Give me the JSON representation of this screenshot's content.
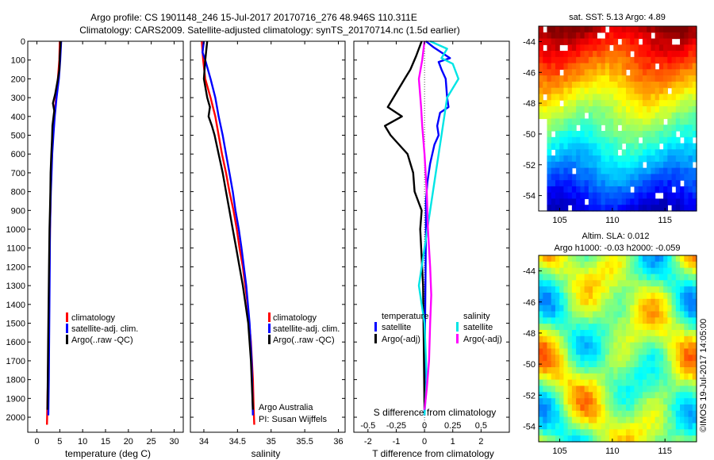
{
  "header": {
    "title_line1": "Argo profile: CS 1901148_246 15-Jul-2017 20170716_276 48.946S 110.311E",
    "title_line2": "Climatology: CARS2009. Satellite-adjusted climatology: synTS_20170714.nc (1.5d earlier)"
  },
  "colors": {
    "climatology": "#ff0000",
    "satellite": "#0000ff",
    "argo": "#000000",
    "salinity_satellite": "#00e5e5",
    "salinity_argo": "#ff00ff"
  },
  "panels": {
    "temperature": {
      "xlabel": "temperature (deg C)",
      "legend": [
        "climatology",
        "satellite-adj. clim.",
        "Argo(..raw -QC)"
      ]
    },
    "salinity": {
      "xlabel": "salinity",
      "legend": [
        "climatology",
        "satellite-adj. clim.",
        "Argo(..raw -QC)"
      ],
      "note1": "Argo Australia",
      "note2": "PI: Susan Wijffels"
    },
    "difference": {
      "xlabel": "T difference from climatology",
      "top_axis_label": "S difference from climatology",
      "legend_temperature_title": "temperature",
      "legend_salinity_title": "salinity",
      "legend_temperature": [
        "satellite",
        "Argo(-adj)"
      ],
      "legend_salinity": [
        "satellite",
        "Argo(-adj)"
      ]
    },
    "sst_map": {
      "title": "sat. SST: 5.13  Argo: 4.89",
      "colormap": [
        "#00008b",
        "#0000ff",
        "#0080ff",
        "#00ffff",
        "#00ff80",
        "#80ff00",
        "#ffff00",
        "#ff8000",
        "#ff0000",
        "#8b0000"
      ]
    },
    "sla_map": {
      "title_line1": "Altim. SLA: 0.012",
      "title_line2": "Argo h1000: -0.03 h2000: -0.059",
      "colormap": [
        "#0000ff",
        "#00ffff",
        "#80ff00",
        "#ffff00",
        "#ff8000"
      ]
    }
  },
  "side_text": "©IMOS 19-Jul-2017 14:05:00",
  "chart_data": [
    {
      "type": "line",
      "name": "temperature profile",
      "xlabel": "temperature (deg C)",
      "ylabel": "",
      "xlim": [
        -2,
        32
      ],
      "ylim": [
        2080,
        0
      ],
      "xticks": [
        0,
        5,
        10,
        15,
        20,
        25,
        30
      ],
      "yticks": [
        0,
        100,
        200,
        300,
        400,
        500,
        600,
        700,
        800,
        900,
        1000,
        1100,
        1200,
        1300,
        1400,
        1500,
        1600,
        1700,
        1800,
        1900,
        2000
      ],
      "series": [
        {
          "name": "climatology",
          "x": [
            5.0,
            4.9,
            4.6,
            4.2,
            3.8,
            3.5,
            3.3,
            3.15,
            3.0,
            2.95,
            2.85,
            2.75,
            2.6,
            2.4,
            2.2
          ],
          "y": [
            0,
            100,
            200,
            300,
            400,
            500,
            600,
            700,
            800,
            900,
            1000,
            1200,
            1500,
            1800,
            2040
          ]
        },
        {
          "name": "satellite-adj. clim.",
          "x": [
            5.3,
            5.1,
            4.8,
            4.3,
            3.9,
            3.6,
            3.35,
            3.2,
            3.05,
            2.95,
            2.85,
            2.8,
            2.7,
            2.6,
            2.5
          ],
          "y": [
            0,
            100,
            200,
            300,
            400,
            500,
            600,
            700,
            800,
            900,
            1000,
            1200,
            1500,
            1800,
            1990
          ]
        },
        {
          "name": "Argo(..raw -QC)",
          "x": [
            5.2,
            5.0,
            4.9,
            4.6,
            4.0,
            3.5,
            3.8,
            3.4,
            3.3,
            3.15,
            3.0,
            2.95,
            2.85,
            2.75,
            2.65,
            2.45,
            2.3
          ],
          "y": [
            0,
            80,
            150,
            200,
            280,
            330,
            370,
            450,
            520,
            600,
            700,
            800,
            900,
            1000,
            1200,
            1600,
            1960
          ]
        }
      ]
    },
    {
      "type": "line",
      "name": "salinity profile",
      "xlabel": "salinity",
      "ylabel": "",
      "xlim": [
        33.8,
        36.1
      ],
      "ylim": [
        2080,
        0
      ],
      "xticks": [
        34,
        34.5,
        35,
        35.5,
        36
      ],
      "yticks": [
        0,
        100,
        200,
        300,
        400,
        500,
        600,
        700,
        800,
        900,
        1000,
        1100,
        1200,
        1300,
        1400,
        1500,
        1600,
        1700,
        1800,
        1900,
        2000
      ],
      "series": [
        {
          "name": "climatology",
          "x": [
            33.97,
            33.99,
            34.02,
            34.1,
            34.17,
            34.22,
            34.27,
            34.33,
            34.38,
            34.44,
            34.49,
            34.53,
            34.58,
            34.65,
            34.7,
            34.73,
            34.74,
            34.75
          ],
          "y": [
            0,
            100,
            200,
            300,
            400,
            500,
            600,
            700,
            800,
            900,
            1000,
            1100,
            1200,
            1400,
            1600,
            1800,
            1950,
            2040
          ]
        },
        {
          "name": "satellite-adj. clim.",
          "x": [
            34.0,
            33.98,
            34.02,
            34.1,
            34.17,
            34.22,
            34.28,
            34.33,
            34.38,
            34.43,
            34.47,
            34.52,
            34.56,
            34.63,
            34.68,
            34.71,
            34.72,
            34.73
          ],
          "y": [
            0,
            60,
            100,
            200,
            300,
            400,
            500,
            600,
            700,
            800,
            900,
            1000,
            1100,
            1300,
            1500,
            1700,
            1850,
            1990
          ]
        },
        {
          "name": "Argo(..raw -QC)",
          "x": [
            34.05,
            34.02,
            34.0,
            34.05,
            34.09,
            34.07,
            34.12,
            34.16,
            34.22,
            34.28,
            34.33,
            34.38,
            34.43,
            34.48,
            34.53,
            34.58,
            34.62,
            34.66,
            34.7,
            34.73
          ],
          "y": [
            0,
            100,
            200,
            300,
            350,
            400,
            450,
            500,
            600,
            700,
            800,
            900,
            1000,
            1100,
            1200,
            1300,
            1400,
            1500,
            1700,
            1960
          ]
        }
      ]
    },
    {
      "type": "line",
      "name": "difference from climatology",
      "xlabel": "T difference from climatology",
      "top_label": "S difference from climatology",
      "xlim": [
        -2.5,
        3
      ],
      "top_xlim": [
        -0.625,
        0.75
      ],
      "ylim": [
        2080,
        0
      ],
      "xticks": [
        -2,
        -1,
        0,
        1,
        2
      ],
      "top_xticks": [
        -0.5,
        -0.25,
        0,
        0.25,
        0.5
      ],
      "yticks": [
        0,
        100,
        200,
        300,
        400,
        500,
        600,
        700,
        800,
        900,
        1000,
        1100,
        1200,
        1300,
        1400,
        1500,
        1600,
        1700,
        1800,
        1900,
        2000
      ],
      "series": [
        {
          "name": "temperature satellite",
          "x": [
            0.05,
            0.3,
            0.9,
            0.5,
            0.6,
            0.75,
            0.8,
            0.85,
            0.55,
            0.45,
            0.5,
            0.35,
            0.2,
            0.1,
            0.05,
            0.05,
            0.02,
            0.0
          ],
          "y": [
            0,
            30,
            90,
            110,
            150,
            200,
            300,
            350,
            380,
            450,
            500,
            550,
            650,
            750,
            850,
            1000,
            1500,
            1990
          ]
        },
        {
          "name": "temperature Argo(-adj)",
          "x": [
            -0.1,
            -0.3,
            -0.5,
            -0.7,
            -0.9,
            -1.3,
            -0.8,
            -1.4,
            -1.2,
            -0.6,
            -0.4,
            -0.35,
            -0.1,
            -0.15,
            -0.05,
            0.0
          ],
          "y": [
            0,
            80,
            150,
            200,
            250,
            350,
            400,
            450,
            500,
            600,
            700,
            800,
            900,
            1000,
            1300,
            1960
          ]
        },
        {
          "name": "salinity satellite",
          "x": [
            0.05,
            0.2,
            0.15,
            0.25,
            0.3,
            0.2,
            0.15,
            0.1,
            0.05,
            0.0,
            -0.05,
            0.0,
            0.02,
            0.0
          ],
          "y": [
            0,
            40,
            90,
            120,
            200,
            300,
            500,
            700,
            900,
            1100,
            1300,
            1500,
            1800,
            1990
          ]
        },
        {
          "name": "salinity Argo(-adj)",
          "x": [
            0.0,
            -0.02,
            -0.05,
            -0.03,
            -0.02,
            0.0,
            0.02,
            0.03,
            0.05,
            0.06,
            0.05,
            0.04,
            0.02,
            0.0
          ],
          "y": [
            0,
            100,
            200,
            350,
            450,
            600,
            800,
            1000,
            1200,
            1350,
            1500,
            1700,
            1850,
            1960
          ]
        }
      ]
    },
    {
      "type": "heatmap",
      "name": "sat SST map",
      "title": "sat. SST: 5.13  Argo: 4.89",
      "xlim": [
        103,
        118
      ],
      "ylim": [
        -55,
        -43
      ],
      "xticks": [
        105,
        110,
        115
      ],
      "yticks": [
        -44,
        -46,
        -48,
        -50,
        -52,
        -54
      ],
      "colormap": "jet"
    },
    {
      "type": "heatmap",
      "name": "altimetry SLA map",
      "title": "Altim. SLA: 0.012",
      "subtitle": "Argo h1000: -0.03 h2000: -0.059",
      "xlim": [
        103,
        118
      ],
      "ylim": [
        -55,
        -43
      ],
      "xticks": [
        105,
        110,
        115
      ],
      "yticks": [
        -44,
        -46,
        -48,
        -50,
        -52,
        -54
      ],
      "colormap": "jet"
    }
  ]
}
